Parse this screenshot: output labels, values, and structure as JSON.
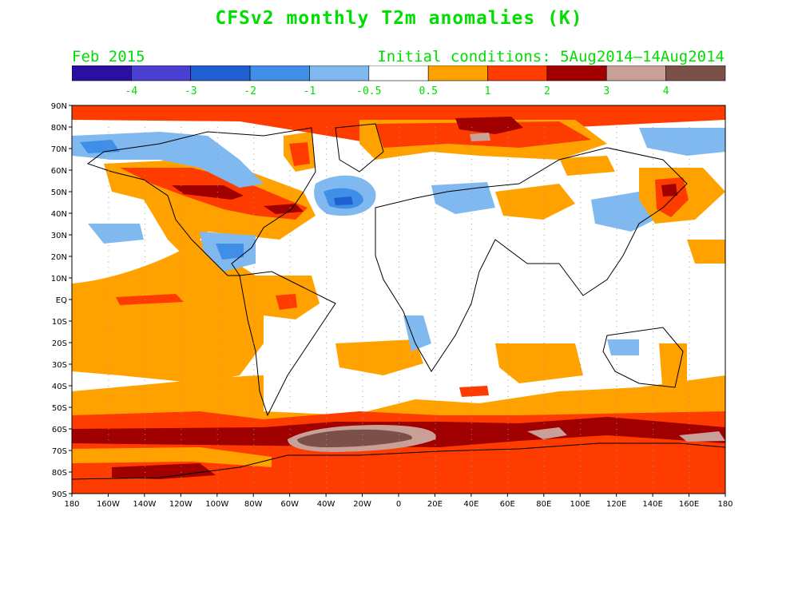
{
  "header": {
    "title": "CFSv2 monthly T2m anomalies (K)",
    "valid_month": "Feb 2015",
    "initial_conditions": "Initial conditions: 5Aug2014—14Aug2014"
  },
  "colorbar": {
    "colors": [
      "#2a0fa0",
      "#4a3fd0",
      "#1f5fd0",
      "#3f8fe8",
      "#80b8f0",
      "#ffffff",
      "#ffa200",
      "#ff3c00",
      "#a00000",
      "#c8a098",
      "#7a5048"
    ],
    "labels": [
      "-4",
      "-3",
      "-2",
      "-1",
      "-0.5",
      "0.5",
      "1",
      "2",
      "3",
      "4"
    ]
  },
  "map": {
    "lat_labels": [
      "90N",
      "80N",
      "70N",
      "60N",
      "50N",
      "40N",
      "30N",
      "20N",
      "10N",
      "EQ",
      "10S",
      "20S",
      "30S",
      "40S",
      "50S",
      "60S",
      "70S",
      "80S",
      "90S"
    ],
    "lon_labels": [
      "180",
      "160W",
      "140W",
      "120W",
      "100W",
      "80W",
      "60W",
      "40W",
      "20W",
      "0",
      "20E",
      "40E",
      "60E",
      "80E",
      "100E",
      "120E",
      "140E",
      "160E",
      "180"
    ],
    "anomaly_regions": [
      {
        "name": "southern-ocean-warm-belt",
        "level": "0.5-1"
      },
      {
        "name": "antarctic-warm-zone",
        "level": "1-2"
      },
      {
        "name": "weddell-sea-hot-spot",
        "level": "3-4"
      },
      {
        "name": "alaska-canada-warm",
        "level": "2-3"
      },
      {
        "name": "north-atlantic-cold",
        "level": "-2"
      },
      {
        "name": "arctic-siberia-hot-spot",
        "level": "3-4"
      },
      {
        "name": "japan-warm",
        "level": "2-3"
      },
      {
        "name": "east-pacific-warm-band",
        "level": "0.5-1"
      }
    ]
  }
}
